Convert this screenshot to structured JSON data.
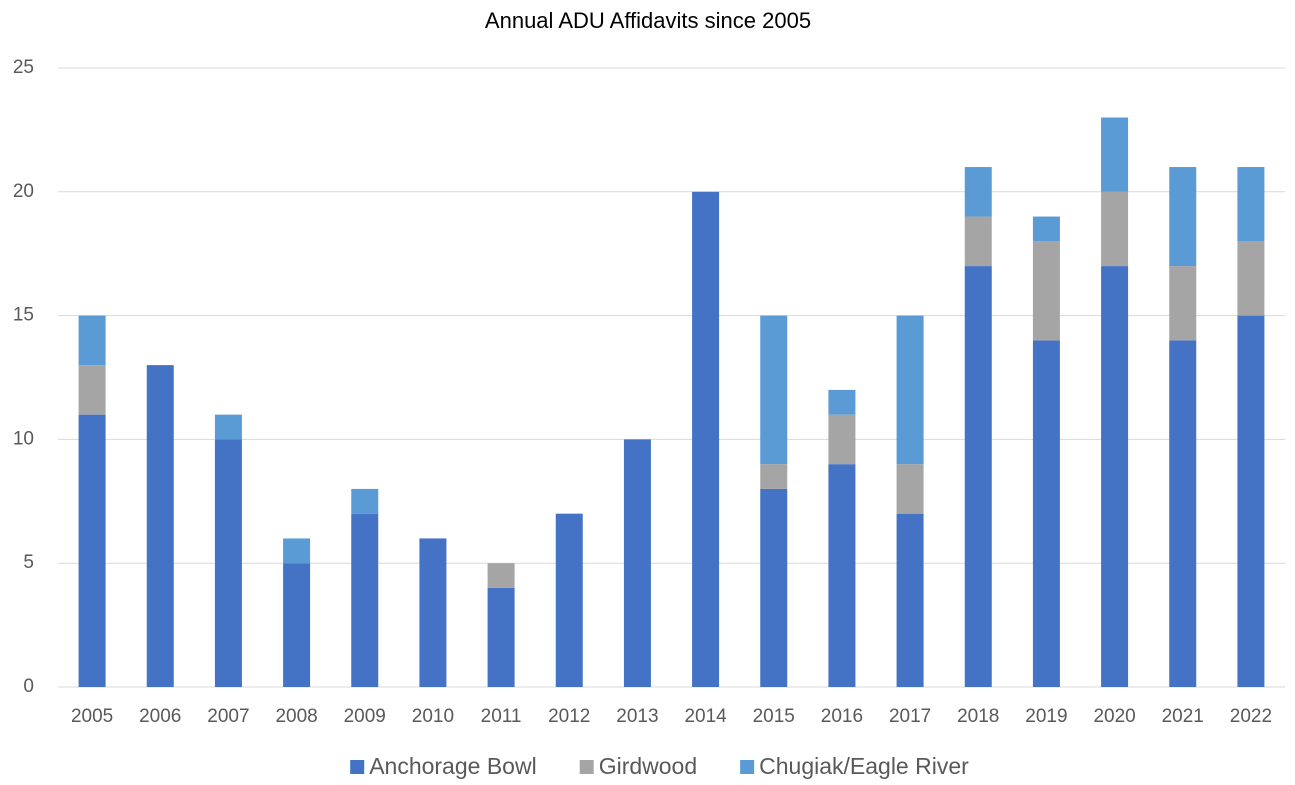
{
  "chart_data": {
    "type": "stacked_bar",
    "title": "Annual ADU Affidavits since 2005",
    "categories": [
      "2005",
      "2006",
      "2007",
      "2008",
      "2009",
      "2010",
      "2011",
      "2012",
      "2013",
      "2014",
      "2015",
      "2016",
      "2017",
      "2018",
      "2019",
      "2020",
      "2021",
      "2022"
    ],
    "series": [
      {
        "name": "Anchorage Bowl",
        "color": "#4472c4",
        "values": [
          11,
          13,
          10,
          5,
          7,
          6,
          4,
          7,
          10,
          20,
          8,
          9,
          7,
          17,
          14,
          17,
          14,
          15
        ]
      },
      {
        "name": "Girdwood",
        "color": "#a5a5a5",
        "values": [
          2,
          0,
          0,
          0,
          0,
          0,
          1,
          0,
          0,
          0,
          1,
          2,
          2,
          2,
          4,
          3,
          3,
          3
        ]
      },
      {
        "name": "Chugiak/Eagle River",
        "color": "#5b9bd5",
        "values": [
          2,
          0,
          1,
          1,
          1,
          0,
          0,
          0,
          0,
          0,
          6,
          1,
          6,
          2,
          1,
          3,
          4,
          3
        ]
      }
    ],
    "ylim": [
      0,
      25
    ],
    "yticks": [
      0,
      5,
      10,
      15,
      20,
      25
    ],
    "grid": true,
    "legend": "bottom"
  }
}
